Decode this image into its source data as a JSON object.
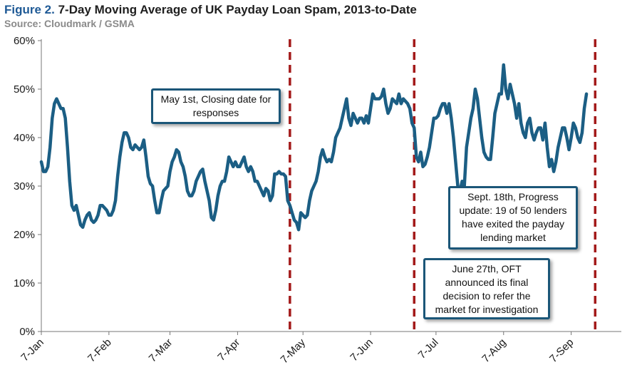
{
  "title": {
    "prefix": "Figure 2.",
    "text": "7-Day Moving Average of UK Payday Loan Spam, 2013-to-Date",
    "source": "Source: Cloudmark / GSMA"
  },
  "colors": {
    "series": "#1b5e84",
    "event_line": "#a31a1a",
    "note_border": "#1b5678",
    "title_prefix": "#1f5a96"
  },
  "chart_data": {
    "type": "line",
    "title": "7-Day Moving Average of UK Payday Loan Spam, 2013-to-Date",
    "xlabel": "",
    "ylabel": "",
    "y_unit": "percent",
    "ylim": [
      0,
      60
    ],
    "y_ticks": [
      0,
      10,
      20,
      30,
      40,
      50,
      60
    ],
    "y_tick_labels": [
      "0%",
      "10%",
      "20%",
      "30%",
      "40%",
      "50%",
      "60%"
    ],
    "x_ticks": [
      "2013-01-07",
      "2013-02-07",
      "2013-03-07",
      "2013-04-07",
      "2013-05-07",
      "2013-06-07",
      "2013-07-07",
      "2013-08-07",
      "2013-09-07"
    ],
    "x_tick_labels": [
      "7-Jan",
      "7-Feb",
      "7-Mar",
      "7-Apr",
      "7-May",
      "7-Jun",
      "7-Jul",
      "7-Aug",
      "7-Sep"
    ],
    "x_range": [
      "2013-01-07",
      "2013-09-30"
    ],
    "grid": false,
    "legend": "none",
    "series": [
      {
        "points": [
          [
            "2013-01-07",
            35
          ],
          [
            "2013-01-08",
            33
          ],
          [
            "2013-01-09",
            33
          ],
          [
            "2013-01-10",
            34
          ],
          [
            "2013-01-11",
            38
          ],
          [
            "2013-01-12",
            44
          ],
          [
            "2013-01-13",
            47
          ],
          [
            "2013-01-14",
            48
          ],
          [
            "2013-01-15",
            47
          ],
          [
            "2013-01-16",
            46
          ],
          [
            "2013-01-17",
            46
          ],
          [
            "2013-01-18",
            44
          ],
          [
            "2013-01-19",
            38
          ],
          [
            "2013-01-20",
            31
          ],
          [
            "2013-01-21",
            26
          ],
          [
            "2013-01-22",
            25
          ],
          [
            "2013-01-23",
            26
          ],
          [
            "2013-01-24",
            24
          ],
          [
            "2013-01-25",
            22
          ],
          [
            "2013-01-26",
            21.5
          ],
          [
            "2013-01-27",
            23
          ],
          [
            "2013-01-28",
            24
          ],
          [
            "2013-01-29",
            24.5
          ],
          [
            "2013-01-30",
            23
          ],
          [
            "2013-01-31",
            22.5
          ],
          [
            "2013-02-01",
            23
          ],
          [
            "2013-02-02",
            24
          ],
          [
            "2013-02-03",
            26
          ],
          [
            "2013-02-04",
            26
          ],
          [
            "2013-02-05",
            25.5
          ],
          [
            "2013-02-06",
            25
          ],
          [
            "2013-02-07",
            24
          ],
          [
            "2013-02-08",
            24
          ],
          [
            "2013-02-09",
            25
          ],
          [
            "2013-02-10",
            27
          ],
          [
            "2013-02-11",
            32
          ],
          [
            "2013-02-12",
            36
          ],
          [
            "2013-02-13",
            39
          ],
          [
            "2013-02-14",
            41
          ],
          [
            "2013-02-15",
            41
          ],
          [
            "2013-02-16",
            40
          ],
          [
            "2013-02-17",
            38
          ],
          [
            "2013-02-18",
            37.5
          ],
          [
            "2013-02-19",
            38.5
          ],
          [
            "2013-02-20",
            38
          ],
          [
            "2013-02-21",
            37.5
          ],
          [
            "2013-02-22",
            38
          ],
          [
            "2013-02-23",
            39.5
          ],
          [
            "2013-02-24",
            36
          ],
          [
            "2013-02-25",
            32
          ],
          [
            "2013-02-26",
            30.5
          ],
          [
            "2013-02-27",
            30
          ],
          [
            "2013-02-28",
            27
          ],
          [
            "2013-03-01",
            24.5
          ],
          [
            "2013-03-02",
            24.5
          ],
          [
            "2013-03-03",
            27
          ],
          [
            "2013-03-04",
            29
          ],
          [
            "2013-03-05",
            29.5
          ],
          [
            "2013-03-06",
            30
          ],
          [
            "2013-03-07",
            33
          ],
          [
            "2013-03-08",
            35
          ],
          [
            "2013-03-09",
            36
          ],
          [
            "2013-03-10",
            37.5
          ],
          [
            "2013-03-11",
            37
          ],
          [
            "2013-03-12",
            35
          ],
          [
            "2013-03-13",
            34
          ],
          [
            "2013-03-14",
            32
          ],
          [
            "2013-03-15",
            29
          ],
          [
            "2013-03-16",
            28
          ],
          [
            "2013-03-17",
            28
          ],
          [
            "2013-03-18",
            29
          ],
          [
            "2013-03-19",
            31
          ],
          [
            "2013-03-20",
            32
          ],
          [
            "2013-03-21",
            33
          ],
          [
            "2013-03-22",
            33.5
          ],
          [
            "2013-03-23",
            31
          ],
          [
            "2013-03-24",
            29
          ],
          [
            "2013-03-25",
            27
          ],
          [
            "2013-03-26",
            23.5
          ],
          [
            "2013-03-27",
            23
          ],
          [
            "2013-03-28",
            25
          ],
          [
            "2013-03-29",
            28
          ],
          [
            "2013-03-30",
            30
          ],
          [
            "2013-03-31",
            31
          ],
          [
            "2013-04-01",
            31
          ],
          [
            "2013-04-02",
            33
          ],
          [
            "2013-04-03",
            36
          ],
          [
            "2013-04-04",
            35
          ],
          [
            "2013-04-05",
            34
          ],
          [
            "2013-04-06",
            35
          ],
          [
            "2013-04-07",
            34
          ],
          [
            "2013-04-08",
            34
          ],
          [
            "2013-04-09",
            35
          ],
          [
            "2013-04-10",
            36
          ],
          [
            "2013-04-11",
            34
          ],
          [
            "2013-04-12",
            33
          ],
          [
            "2013-04-13",
            34
          ],
          [
            "2013-04-14",
            33
          ],
          [
            "2013-04-15",
            31
          ],
          [
            "2013-04-16",
            31
          ],
          [
            "2013-04-17",
            30
          ],
          [
            "2013-04-18",
            29
          ],
          [
            "2013-04-19",
            28
          ],
          [
            "2013-04-20",
            29.5
          ],
          [
            "2013-04-21",
            29
          ],
          [
            "2013-04-22",
            27
          ],
          [
            "2013-04-23",
            28
          ],
          [
            "2013-04-24",
            32.5
          ],
          [
            "2013-04-25",
            32.5
          ],
          [
            "2013-04-26",
            33
          ],
          [
            "2013-04-27",
            32.5
          ],
          [
            "2013-04-28",
            32.5
          ],
          [
            "2013-04-29",
            32
          ],
          [
            "2013-04-30",
            27
          ],
          [
            "2013-05-01",
            26
          ],
          [
            "2013-05-02",
            24.5
          ],
          [
            "2013-05-03",
            23
          ],
          [
            "2013-05-04",
            22.5
          ],
          [
            "2013-05-05",
            21
          ],
          [
            "2013-05-06",
            24.5
          ],
          [
            "2013-05-07",
            24
          ],
          [
            "2013-05-08",
            23.5
          ],
          [
            "2013-05-09",
            24
          ],
          [
            "2013-05-10",
            27
          ],
          [
            "2013-05-11",
            29
          ],
          [
            "2013-05-12",
            30
          ],
          [
            "2013-05-13",
            31
          ],
          [
            "2013-05-14",
            33
          ],
          [
            "2013-05-15",
            36
          ],
          [
            "2013-05-16",
            37.5
          ],
          [
            "2013-05-17",
            36
          ],
          [
            "2013-05-18",
            35
          ],
          [
            "2013-05-19",
            35.5
          ],
          [
            "2013-05-20",
            35
          ],
          [
            "2013-05-21",
            37
          ],
          [
            "2013-05-22",
            40
          ],
          [
            "2013-05-23",
            41
          ],
          [
            "2013-05-24",
            42
          ],
          [
            "2013-05-25",
            44
          ],
          [
            "2013-05-26",
            46
          ],
          [
            "2013-05-27",
            48
          ],
          [
            "2013-05-28",
            44
          ],
          [
            "2013-05-29",
            42.5
          ],
          [
            "2013-05-30",
            45
          ],
          [
            "2013-05-31",
            44
          ],
          [
            "2013-06-01",
            43
          ],
          [
            "2013-06-02",
            44
          ],
          [
            "2013-06-03",
            44
          ],
          [
            "2013-06-04",
            43
          ],
          [
            "2013-06-05",
            44.5
          ],
          [
            "2013-06-06",
            43
          ],
          [
            "2013-06-07",
            46
          ],
          [
            "2013-06-08",
            49
          ],
          [
            "2013-06-09",
            48
          ],
          [
            "2013-06-10",
            48
          ],
          [
            "2013-06-11",
            48
          ],
          [
            "2013-06-12",
            48.5
          ],
          [
            "2013-06-13",
            50
          ],
          [
            "2013-06-14",
            47
          ],
          [
            "2013-06-15",
            45
          ],
          [
            "2013-06-16",
            46
          ],
          [
            "2013-06-17",
            48
          ],
          [
            "2013-06-18",
            47.5
          ],
          [
            "2013-06-19",
            47
          ],
          [
            "2013-06-20",
            49
          ],
          [
            "2013-06-21",
            47
          ],
          [
            "2013-06-22",
            48
          ],
          [
            "2013-06-23",
            47.5
          ],
          [
            "2013-06-24",
            47
          ],
          [
            "2013-06-25",
            46
          ],
          [
            "2013-06-26",
            43
          ],
          [
            "2013-06-27",
            42
          ],
          [
            "2013-06-28",
            36
          ],
          [
            "2013-06-29",
            35
          ],
          [
            "2013-06-30",
            37
          ],
          [
            "2013-07-01",
            34
          ],
          [
            "2013-07-02",
            34.5
          ],
          [
            "2013-07-03",
            36
          ],
          [
            "2013-07-04",
            38
          ],
          [
            "2013-07-05",
            41
          ],
          [
            "2013-07-06",
            44
          ],
          [
            "2013-07-07",
            44
          ],
          [
            "2013-07-08",
            44.5
          ],
          [
            "2013-07-09",
            46
          ],
          [
            "2013-07-10",
            47
          ],
          [
            "2013-07-11",
            47
          ],
          [
            "2013-07-12",
            45
          ],
          [
            "2013-07-13",
            47
          ],
          [
            "2013-07-14",
            44
          ],
          [
            "2013-07-15",
            40
          ],
          [
            "2013-07-16",
            35
          ],
          [
            "2013-07-17",
            30
          ],
          [
            "2013-07-18",
            29
          ],
          [
            "2013-07-19",
            31
          ],
          [
            "2013-07-20",
            30
          ],
          [
            "2013-07-21",
            38
          ],
          [
            "2013-07-22",
            41
          ],
          [
            "2013-07-23",
            44
          ],
          [
            "2013-07-24",
            46
          ],
          [
            "2013-07-25",
            50
          ],
          [
            "2013-07-26",
            48
          ],
          [
            "2013-07-27",
            44
          ],
          [
            "2013-07-28",
            40
          ],
          [
            "2013-07-29",
            37
          ],
          [
            "2013-07-30",
            36
          ],
          [
            "2013-07-31",
            35.5
          ],
          [
            "2013-08-01",
            35.5
          ],
          [
            "2013-08-02",
            40
          ],
          [
            "2013-08-03",
            45
          ],
          [
            "2013-08-04",
            47
          ],
          [
            "2013-08-05",
            49
          ],
          [
            "2013-08-06",
            49
          ],
          [
            "2013-08-07",
            55
          ],
          [
            "2013-08-08",
            50
          ],
          [
            "2013-08-09",
            48
          ],
          [
            "2013-08-10",
            51
          ],
          [
            "2013-08-11",
            49
          ],
          [
            "2013-08-12",
            47
          ],
          [
            "2013-08-13",
            44
          ],
          [
            "2013-08-14",
            47
          ],
          [
            "2013-08-15",
            43
          ],
          [
            "2013-08-16",
            41
          ],
          [
            "2013-08-17",
            40
          ],
          [
            "2013-08-18",
            43
          ],
          [
            "2013-08-19",
            44
          ],
          [
            "2013-08-20",
            41
          ],
          [
            "2013-08-21",
            39.5
          ],
          [
            "2013-08-22",
            41
          ],
          [
            "2013-08-23",
            42
          ],
          [
            "2013-08-24",
            42
          ],
          [
            "2013-08-25",
            39.5
          ],
          [
            "2013-08-26",
            43
          ],
          [
            "2013-08-27",
            38
          ],
          [
            "2013-08-28",
            34
          ],
          [
            "2013-08-29",
            35.5
          ],
          [
            "2013-08-30",
            33
          ],
          [
            "2013-08-31",
            35
          ],
          [
            "2013-09-01",
            38
          ],
          [
            "2013-09-02",
            40
          ],
          [
            "2013-09-03",
            42
          ],
          [
            "2013-09-04",
            42
          ],
          [
            "2013-09-05",
            40
          ],
          [
            "2013-09-06",
            37.5
          ],
          [
            "2013-09-07",
            40
          ],
          [
            "2013-09-08",
            43
          ],
          [
            "2013-09-09",
            42
          ],
          [
            "2013-09-10",
            40
          ],
          [
            "2013-09-11",
            39
          ],
          [
            "2013-09-12",
            41
          ],
          [
            "2013-09-13",
            46
          ],
          [
            "2013-09-14",
            49
          ]
        ]
      }
    ],
    "events": [
      {
        "date": "2013-05-01",
        "label": "May 1st, Closing date for responses"
      },
      {
        "date": "2013-06-27",
        "label": "June 27th, OFT announced its final decision to refer the market for investigation"
      },
      {
        "date": "2013-09-18",
        "label": "Sept. 18th, Progress update: 19 of 50 lenders have exited the payday lending market"
      }
    ]
  },
  "notes": [
    {
      "lines": [
        "May 1st, Closing date for",
        "responses"
      ]
    },
    {
      "lines": [
        "Sept. 18th, Progress",
        "update: 19 of 50 lenders",
        "have exited the payday",
        "lending market"
      ]
    },
    {
      "lines": [
        "June 27th, OFT",
        "announced its final",
        "decision to refer the",
        "market for investigation"
      ]
    }
  ]
}
